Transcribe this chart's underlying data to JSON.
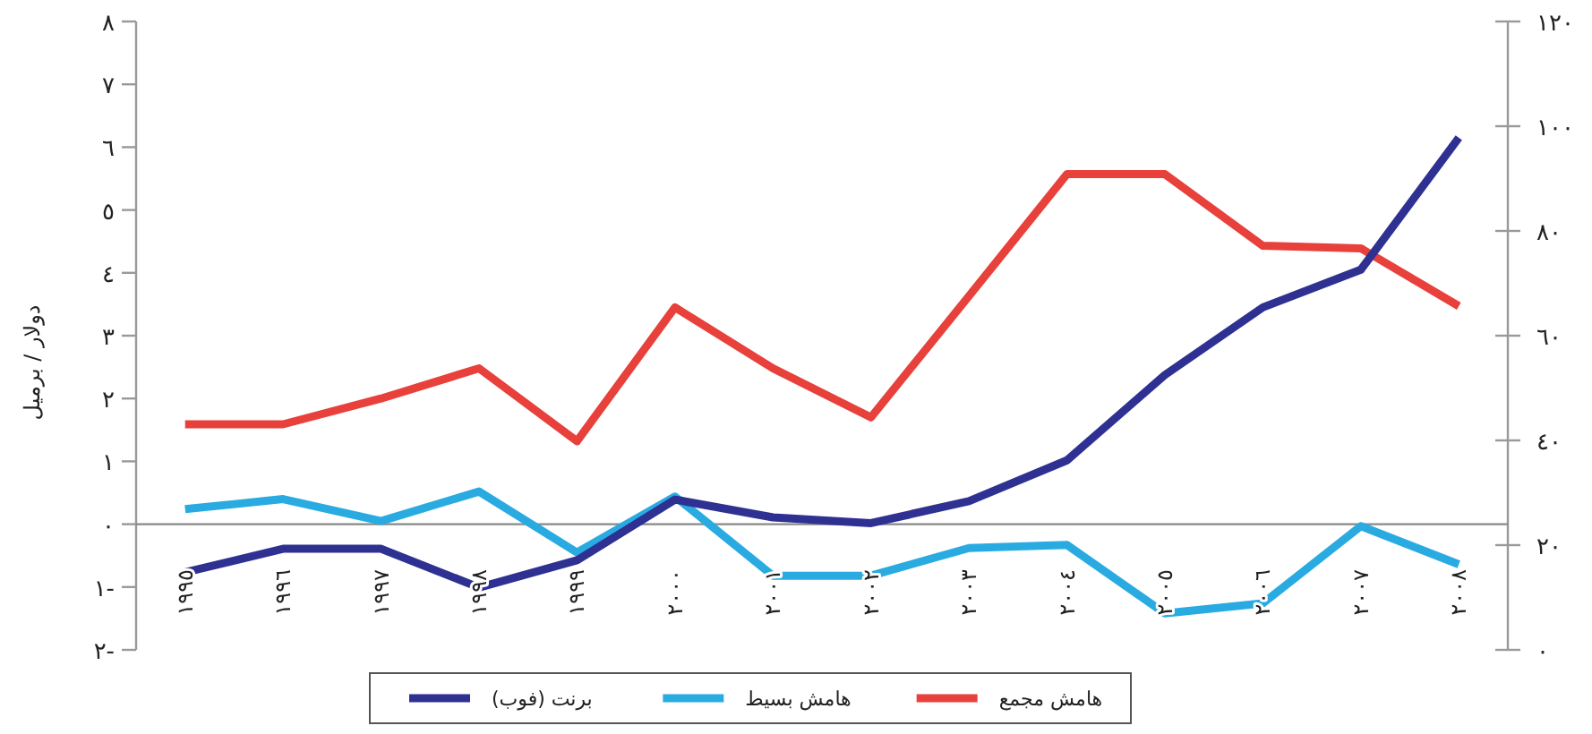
{
  "chart_data": {
    "type": "line",
    "ylabel": "دولار / برميل",
    "categories": [
      "١٩٩٥",
      "١٩٩٦",
      "١٩٩٧",
      "١٩٩٨",
      "١٩٩٩",
      "٢٠٠٠",
      "٢٠٠١",
      "٢٠٠٢",
      "٢٠٠٣",
      "٢٠٠٤",
      "٢٠٠٥",
      "٢٠٠٦",
      "٢٠٠٧",
      "٢٠٠٨"
    ],
    "series": [
      {
        "name": "هامش مجمع",
        "color": "#e8403a",
        "values": [
          1.59,
          1.59,
          2.0,
          2.48,
          1.32,
          3.45,
          2.48,
          1.7,
          3.63,
          5.57,
          5.57,
          4.43,
          4.39,
          3.47
        ]
      },
      {
        "name": "هامش بسيط",
        "color": "#29abe2",
        "values": [
          0.24,
          0.4,
          0.05,
          0.52,
          -0.45,
          0.44,
          -0.82,
          -0.82,
          -0.38,
          -0.33,
          -1.42,
          -1.26,
          -0.03,
          -0.64
        ]
      },
      {
        "name": "برنت (فوب)",
        "color": "#2e3192",
        "axis": "y2",
        "values": [
          14.8,
          19.3,
          19.3,
          11.9,
          17.1,
          28.7,
          25.3,
          24.2,
          28.4,
          36.2,
          52.5,
          65.4,
          72.6,
          97.8
        ]
      }
    ],
    "ylim": [
      -2,
      8
    ],
    "yticks": [
      {
        "value": -2,
        "label": "٢-"
      },
      {
        "value": -1,
        "label": "١-"
      },
      {
        "value": 0,
        "label": "٠"
      },
      {
        "value": 1,
        "label": "١"
      },
      {
        "value": 2,
        "label": "٢"
      },
      {
        "value": 3,
        "label": "٣"
      },
      {
        "value": 4,
        "label": "٤"
      },
      {
        "value": 5,
        "label": "٥"
      },
      {
        "value": 6,
        "label": "٦"
      },
      {
        "value": 7,
        "label": "٧"
      },
      {
        "value": 8,
        "label": "٨"
      }
    ],
    "y2lim": [
      0,
      120
    ],
    "y2ticks": [
      {
        "value": 0,
        "label": "٠"
      },
      {
        "value": 20,
        "label": "٢٠"
      },
      {
        "value": 40,
        "label": "٤٠"
      },
      {
        "value": 60,
        "label": "٦٠"
      },
      {
        "value": 80,
        "label": "٨٠"
      },
      {
        "value": 100,
        "label": "١٠٠"
      },
      {
        "value": 120,
        "label": "١٢٠"
      }
    ],
    "legend": "bottom"
  }
}
